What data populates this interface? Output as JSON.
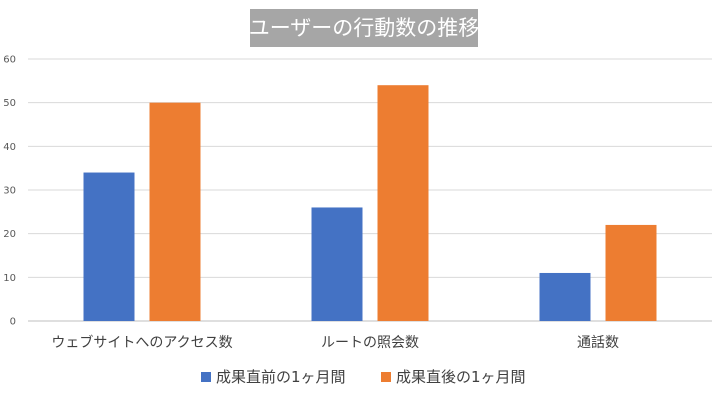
{
  "chart_data": {
    "type": "bar",
    "title": "ユーザーの行動数の推移",
    "categories": [
      "ウェブサイトへのアクセス数",
      "ルートの照会数",
      "通話数"
    ],
    "series": [
      {
        "name": "成果直前の1ヶ月間",
        "values": [
          34,
          26,
          11
        ],
        "color": "#4472c4"
      },
      {
        "name": "成果直後の1ヶ月間",
        "values": [
          50,
          54,
          22
        ],
        "color": "#ed7d31"
      }
    ],
    "ylim": [
      0,
      60
    ],
    "yticks": [
      0,
      10,
      20,
      30,
      40,
      50,
      60
    ],
    "grid": true,
    "legend": "bottom"
  }
}
